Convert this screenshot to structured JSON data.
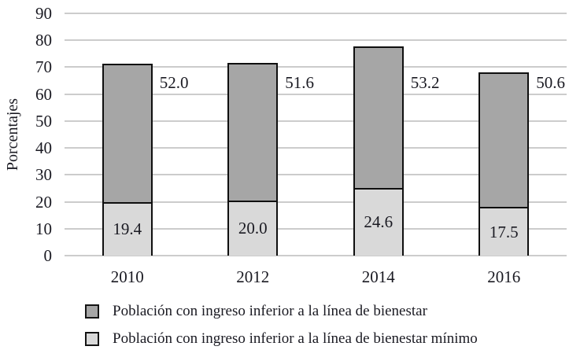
{
  "chart_data": {
    "type": "bar",
    "subtype": "stacked",
    "title": "",
    "categories": [
      "2010",
      "2012",
      "2014",
      "2016"
    ],
    "series": [
      {
        "name": "Población con ingreso inferior a la línea de bienestar",
        "values": [
          52.0,
          51.6,
          53.2,
          50.6
        ],
        "labels": [
          "52.0",
          "51.6",
          "53.2",
          "50.6"
        ],
        "color": "#a6a6a6",
        "stack_position": "top",
        "label_placement": "right-of-bar"
      },
      {
        "name": "Población con ingreso inferior a la línea de bienestar mínimo",
        "values": [
          19.4,
          20.0,
          24.6,
          17.5
        ],
        "labels": [
          "19.4",
          "20.0",
          "24.6",
          "17.5"
        ],
        "color": "#d9d9d9",
        "stack_position": "bottom",
        "label_placement": "inside-segment"
      }
    ],
    "stacked_bar_totals": [
      71.4,
      71.6,
      77.8,
      68.1
    ],
    "xlabel": "",
    "ylabel": "Porcentajes",
    "yticks": [
      0,
      10,
      20,
      30,
      40,
      50,
      60,
      70,
      80,
      90
    ],
    "ylim": [
      0,
      90
    ],
    "grid": true,
    "gridline_color": "#cccccc",
    "bar_border_color": "#0f0f0f",
    "text_color": "#1a1a22",
    "background_color": "#ffffff",
    "legend_position": "bottom-left"
  }
}
